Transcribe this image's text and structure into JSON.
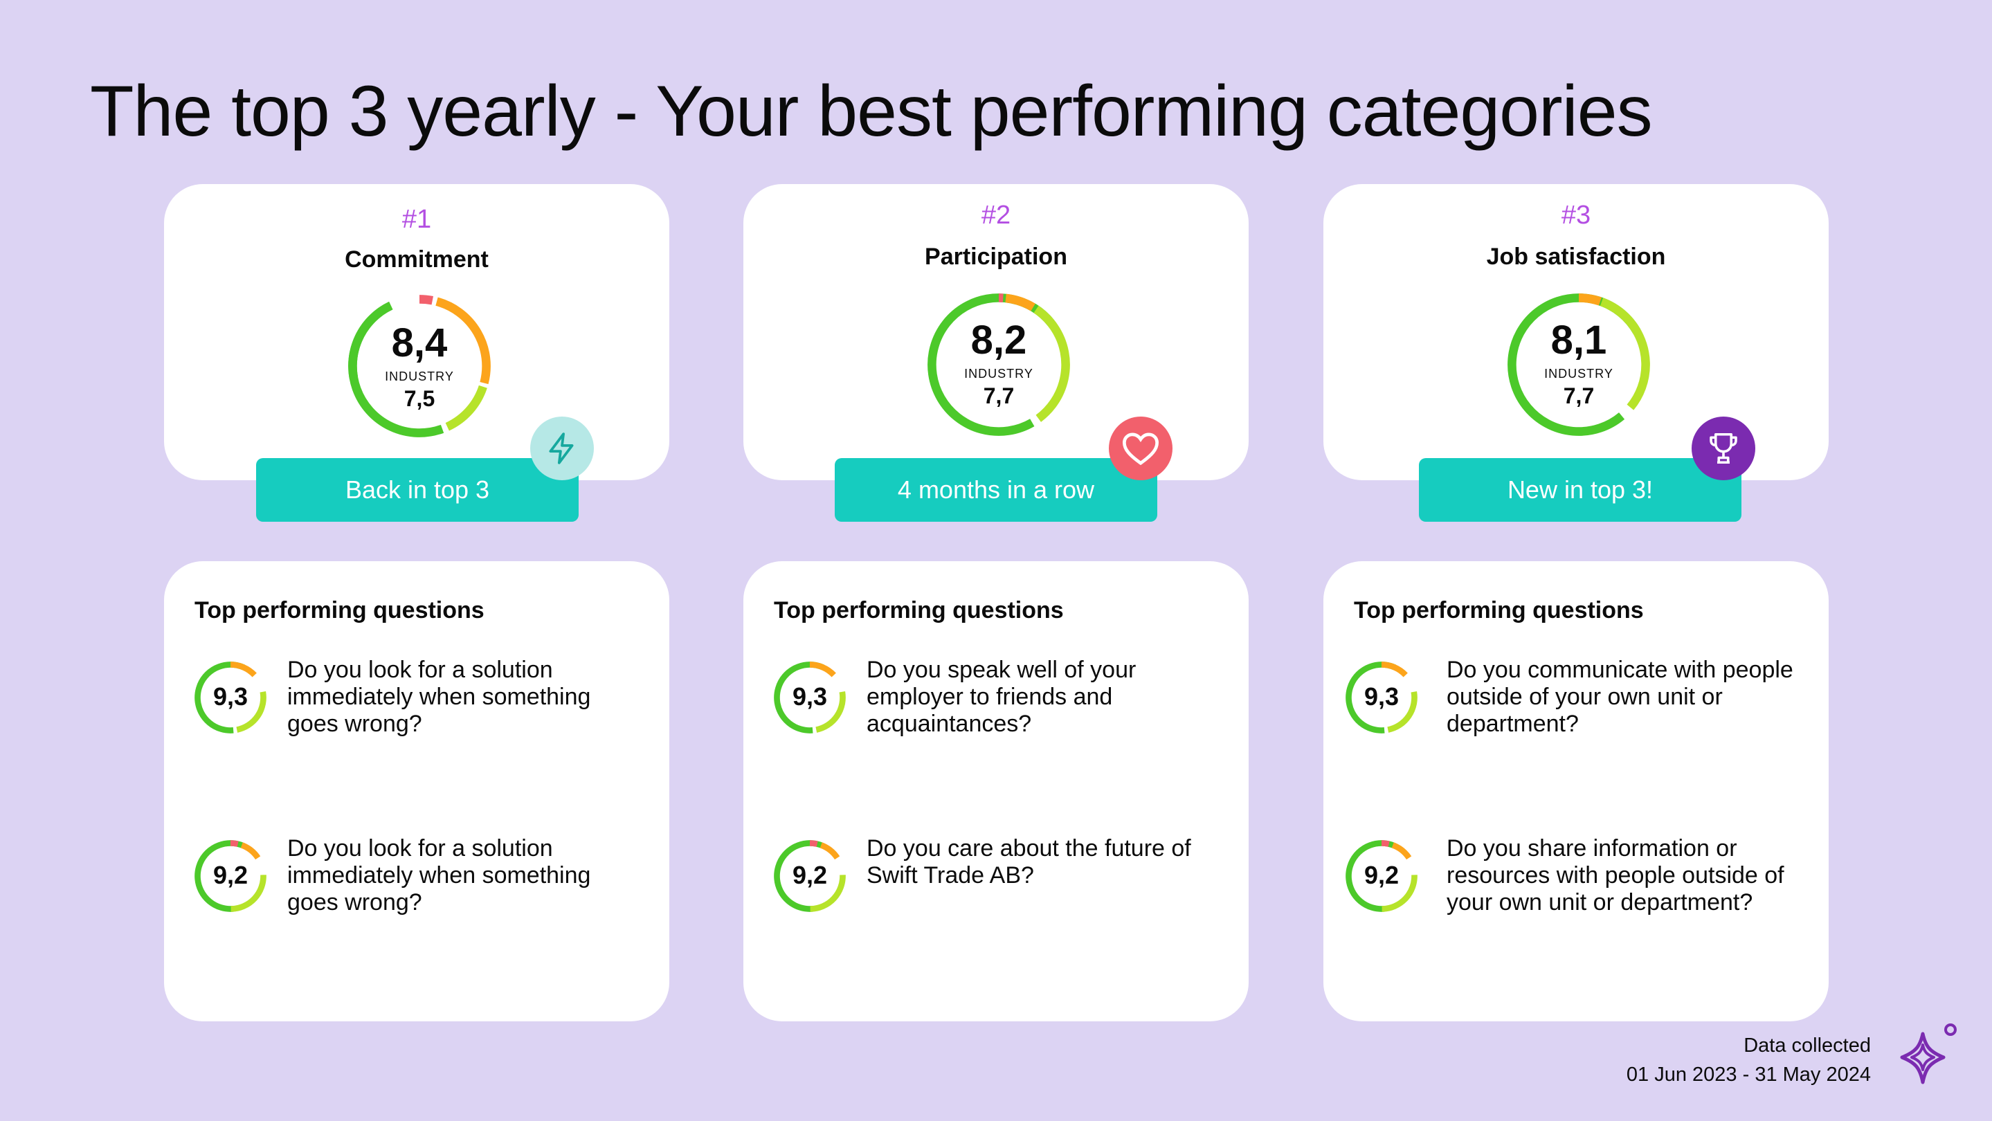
{
  "page": {
    "title": "The top 3 yearly - Your best performing categories"
  },
  "categories": [
    {
      "rank": "#1",
      "name": "Commitment",
      "score": "8,4",
      "industry_label": "INDUSTRY",
      "industry_value": "7,5",
      "badge": "Back in top 3",
      "badge_icon": "lightning-icon",
      "questions_heading": "Top performing questions",
      "questions": [
        {
          "score": "9,3",
          "text": "Do you look for a solution immediately when something goes wrong?"
        },
        {
          "score": "9,2",
          "text": "Do you look for a solution immediately when something goes wrong?"
        }
      ]
    },
    {
      "rank": "#2",
      "name": "Participation",
      "score": "8,2",
      "industry_label": "INDUSTRY",
      "industry_value": "7,7",
      "badge": "4 months in a row",
      "badge_icon": "heart-icon",
      "questions_heading": "Top performing questions",
      "questions": [
        {
          "score": "9,3",
          "text": "Do you speak well of your employer to friends and acquaintances?"
        },
        {
          "score": "9,2",
          "text": "Do you care about the future of Swift Trade AB?"
        }
      ]
    },
    {
      "rank": "#3",
      "name": "Job satisfaction",
      "score": "8,1",
      "industry_label": "INDUSTRY",
      "industry_value": "7,7",
      "badge": "New in top 3!",
      "badge_icon": "trophy-icon",
      "questions_heading": "Top performing questions",
      "questions": [
        {
          "score": "9,3",
          "text": "Do you communicate with people outside of your own unit or department?"
        },
        {
          "score": "9,2",
          "text": "Do you share information or resources with people outside of your own unit or department?"
        }
      ]
    }
  ],
  "footer": {
    "label": "Data collected",
    "range": "01 Jun 2023 - 31 May 2024"
  },
  "logo": {
    "icon": "sparkle-logo-icon"
  },
  "colors": {
    "background": "#dcd3f3",
    "accent_purple": "#b34ee2",
    "badge_teal": "#16ccbf",
    "gauge_green": "#4cc92a",
    "gauge_lime": "#b6e32a",
    "gauge_orange": "#fca41b",
    "gauge_red": "#f2606c",
    "lightning_bg": "#b6e8e6",
    "heart_bg": "#f2606c",
    "trophy_bg": "#7b2bb0"
  }
}
